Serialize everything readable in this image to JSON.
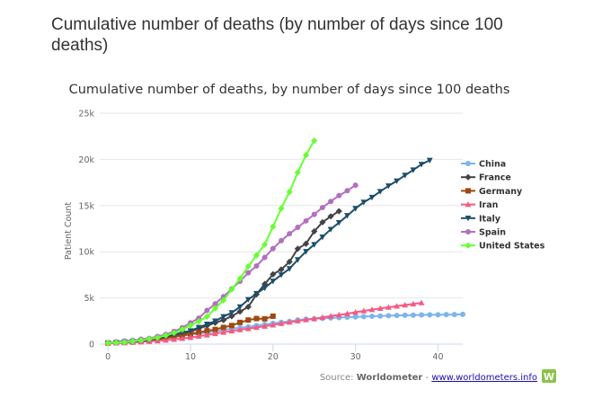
{
  "page": {
    "title": "Cumulative number of deaths (by number of days since 100 deaths)"
  },
  "source": {
    "prefix": "Source: ",
    "name": "Worldometer",
    "sep": " - ",
    "link": "www.worldometers.info",
    "logo_letter": "W"
  },
  "colors": {
    "China": "#7cb5ec",
    "France": "#434348",
    "Germany": "#a0490f",
    "Iran": "#f45b84",
    "Italy": "#1d4e6b",
    "Spain": "#b36fbf",
    "United States": "#66ff33",
    "logo": "#8bc34a",
    "grid": "#e6e6e6"
  },
  "chart_data": {
    "type": "line",
    "title": "Cumulative number of deaths, by number of days since 100 deaths",
    "xlabel": "",
    "ylabel": "Patient Count",
    "xlim": [
      -1,
      43
    ],
    "ylim": [
      0,
      25000
    ],
    "x_ticks": [
      0,
      10,
      20,
      30,
      40
    ],
    "y_ticks": [
      0,
      5000,
      10000,
      15000,
      20000,
      25000
    ],
    "y_tick_labels": [
      "0",
      "5k",
      "10k",
      "15k",
      "20k",
      "25k"
    ],
    "legend_position": "right",
    "series": [
      {
        "name": "China",
        "marker": "circle",
        "values": [
          131,
          259,
          362,
          426,
          492,
          565,
          638,
          724,
          813,
          910,
          1018,
          1115,
          1261,
          1383,
          1526,
          1669,
          1775,
          1873,
          2009,
          2126,
          2247,
          2360,
          2460,
          2618,
          2699,
          2739,
          2788,
          2838,
          2873,
          2915,
          2946,
          2983,
          3016,
          3045,
          3073,
          3100,
          3124,
          3140,
          3162,
          3173,
          3180,
          3194,
          3204,
          3218
        ]
      },
      {
        "name": "France",
        "marker": "diamond",
        "values": [
          127,
          148,
          175,
          244,
          372,
          450,
          562,
          674,
          860,
          1100,
          1331,
          1696,
          1995,
          2314,
          2606,
          3024,
          3523,
          4032,
          5387,
          6507,
          7560,
          8078,
          8911,
          10328,
          10869,
          12210,
          13197,
          13832,
          14393
        ]
      },
      {
        "name": "Germany",
        "marker": "square",
        "values": [
          123,
          157,
          206,
          267,
          342,
          433,
          533,
          645,
          775,
          920,
          1107,
          1275,
          1444,
          1584,
          1810,
          2016,
          2349,
          2607,
          2767,
          2736,
          3022
        ]
      },
      {
        "name": "Iran",
        "marker": "triangle",
        "values": [
          107,
          124,
          145,
          194,
          237,
          291,
          354,
          429,
          514,
          611,
          724,
          853,
          988,
          1135,
          1284,
          1433,
          1556,
          1685,
          1812,
          1934,
          2077,
          2234,
          2378,
          2517,
          2640,
          2757,
          2898,
          3036,
          3160,
          3294,
          3452,
          3603,
          3739,
          3872,
          3993,
          4110,
          4232,
          4357,
          4474
        ]
      },
      {
        "name": "Italy",
        "marker": "triangle-down",
        "values": [
          107,
          148,
          197,
          233,
          366,
          463,
          631,
          827,
          1016,
          1266,
          1441,
          1809,
          2158,
          2503,
          2978,
          3405,
          4032,
          4825,
          5476,
          6077,
          6820,
          7503,
          8165,
          9134,
          10023,
          10779,
          11591,
          12428,
          13155,
          13915,
          14681,
          15362,
          15887,
          16523,
          17127,
          17669,
          18279,
          18849,
          19468,
          19899
        ]
      },
      {
        "name": "Spain",
        "marker": "circle",
        "values": [
          136,
          195,
          289,
          342,
          533,
          623,
          830,
          1043,
          1375,
          1772,
          2311,
          2808,
          3647,
          4365,
          5138,
          5982,
          6803,
          7716,
          8464,
          9387,
          10348,
          11198,
          11947,
          12641,
          13341,
          14045,
          14792,
          15447,
          16081,
          16606,
          17209
        ]
      },
      {
        "name": "United States",
        "marker": "diamond",
        "values": [
          108,
          150,
          207,
          300,
          417,
          557,
          706,
          942,
          1209,
          1581,
          2026,
          2467,
          2978,
          3873,
          4757,
          5926,
          7087,
          8407,
          9619,
          10783,
          12722,
          14695,
          16478,
          18586,
          20463,
          22020
        ]
      }
    ]
  }
}
